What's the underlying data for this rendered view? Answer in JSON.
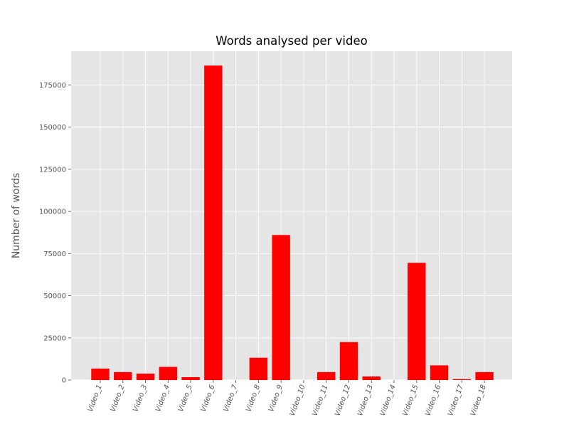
{
  "chart_data": {
    "type": "bar",
    "title": "Words analysed per video",
    "xlabel": "",
    "ylabel": "Number of words",
    "categories": [
      "Video_1",
      "Video_2",
      "Video_3",
      "Video_4",
      "Video_5",
      "Video_6",
      "Video_7",
      "Video_8",
      "Video_9",
      "Video_10",
      "Video_11",
      "Video_12",
      "Video_13",
      "Video_14",
      "Video_15",
      "Video_16",
      "Video_17",
      "Video_18"
    ],
    "values": [
      6800,
      4700,
      3800,
      7800,
      1700,
      186500,
      0,
      13200,
      86000,
      0,
      4700,
      22500,
      2100,
      0,
      69500,
      8700,
      500,
      4700
    ],
    "ylim": [
      0,
      195000
    ],
    "yticks": [
      0,
      25000,
      50000,
      75000,
      100000,
      125000,
      150000,
      175000
    ],
    "ytick_labels": [
      "0",
      "25000",
      "50000",
      "75000",
      "100000",
      "125000",
      "150000",
      "175000"
    ],
    "bar_color": "#ff0000",
    "plot_background": "#e5e5e5",
    "grid": true,
    "grid_color": "#ffffff",
    "style": "ggplot"
  }
}
